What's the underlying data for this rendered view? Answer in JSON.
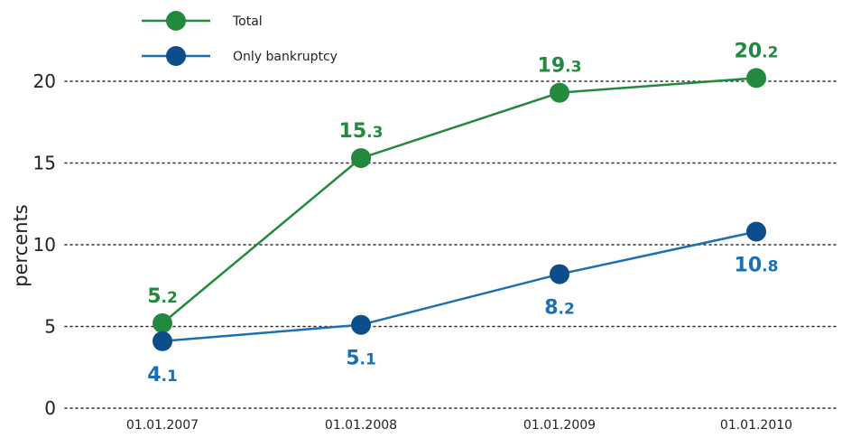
{
  "chart_data": {
    "type": "line",
    "categories": [
      "01.01.2007",
      "01.01.2008",
      "01.01.2009",
      "01.01.2010"
    ],
    "series": [
      {
        "name": "Total",
        "values": [
          5.2,
          15.3,
          19.3,
          20.2
        ],
        "labels": [
          "5.2",
          "15.3",
          "19.3",
          "20.2"
        ],
        "color": "#23893e",
        "label_position": [
          "above",
          "above",
          "above",
          "above"
        ]
      },
      {
        "name": "Only bankruptcy",
        "values": [
          4.1,
          5.1,
          8.2,
          10.8
        ],
        "labels": [
          "4.1",
          "5.1",
          "8.2",
          "10.8"
        ],
        "color": "#0d4d8c",
        "line_color": "#1b6fb5",
        "label_color": "#1b6fb5",
        "label_position": [
          "below",
          "below",
          "below",
          "below"
        ]
      }
    ],
    "ylabel": "percents",
    "xlabel": "",
    "ylim": [
      0,
      20
    ],
    "yticks": [
      "0",
      "5",
      "10",
      "15",
      "20"
    ],
    "grid": "horizontal dotted",
    "legend": "top-left"
  }
}
